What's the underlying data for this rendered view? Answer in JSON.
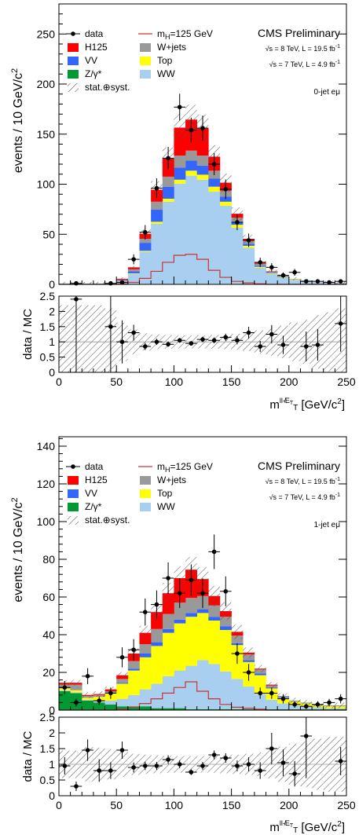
{
  "colors": {
    "data": "#000000",
    "H125": "#ff0000",
    "VV": "#3366ff",
    "Zgamma": "#009933",
    "Wjets": "#999999",
    "Top": "#ffff00",
    "WW": "#a8cef0",
    "mH": "#cc3333"
  },
  "panels": [
    {
      "id": "0jet",
      "ylabel": "events / 10 GeV/c",
      "ylabel_sup": "2",
      "ylim": [
        0,
        280
      ],
      "yticks": [
        0,
        50,
        100,
        150,
        200,
        250
      ],
      "ratio_ylabel": "data / MC",
      "ratio_ylim": [
        0,
        2.5
      ],
      "ratio_yticks": [
        "0",
        "0.5",
        "1",
        "1.5",
        "2",
        "2.5"
      ],
      "xlim": [
        0,
        250
      ],
      "xticks": [
        0,
        50,
        100,
        150,
        200,
        250
      ],
      "xlabel": "m",
      "xlabel_sub": "T",
      "xlabel_sup": "ll-̸E",
      "xlabel_sup_sub": "T",
      "xlabel_unit": "[GeV/c",
      "xlabel_unit_sup": "2",
      "xlabel_unit_end": "]",
      "cms": "CMS Preliminary",
      "lumi8": "√s = 8 TeV, L = 19.5 fb",
      "lumi7": "√s = 7 TeV, L = 4.9 fb",
      "lumi_sup": "-1",
      "category": "0-jet eμ",
      "legend": {
        "data": "data",
        "mh_pre": "m",
        "mh_sub": "H",
        "mh_post": "=125 GeV",
        "H125": "H125",
        "Wjets": "W+jets",
        "VV": "VV",
        "Top": "Top",
        "Z": "Z/γ*",
        "WW": "WW",
        "syst": "stat.⊕syst."
      },
      "chart_data": {
        "type": "bar",
        "stacked": true,
        "x_bin_centers": [
          5,
          15,
          25,
          35,
          45,
          55,
          65,
          75,
          85,
          95,
          105,
          115,
          125,
          135,
          145,
          155,
          165,
          175,
          185,
          195,
          205,
          215,
          225,
          235,
          245
        ],
        "series": [
          {
            "name": "Z/γ*",
            "values": [
              0.5,
              0.5,
              0.5,
              0.5,
              0.5,
              0.5,
              0.5,
              0.5,
              0.5,
              0.5,
              0.5,
              0.5,
              0.5,
              0.5,
              0.5,
              0.5,
              0.5,
              0.5,
              0.5,
              0.5,
              0.5,
              0.5,
              0.5,
              0.5,
              0.5
            ]
          },
          {
            "name": "WW",
            "values": [
              0.5,
              0.5,
              0.5,
              0.5,
              1,
              3,
              10,
              32,
              60,
              82,
              100,
              108,
              104,
              92,
              78,
              56,
              36,
              16,
              10,
              6,
              4,
              3,
              2,
              1.5,
              1
            ]
          },
          {
            "name": "Top",
            "values": [
              0,
              0,
              0,
              0,
              0,
              0,
              0.5,
              1,
              2,
              3,
              4,
              5,
              5,
              5,
              4,
              3,
              2,
              1,
              0.5,
              0.5,
              0.5,
              0,
              0,
              0,
              0
            ]
          },
          {
            "name": "VV",
            "values": [
              0,
              0,
              0,
              0,
              0,
              0.5,
              2,
              8,
              12,
              12,
              12,
              10,
              9,
              8,
              5,
              3,
              2,
              1,
              0.5,
              0.5,
              0,
              0,
              0,
              0,
              0
            ]
          },
          {
            "name": "W+jets",
            "values": [
              0,
              0,
              0,
              0,
              0,
              0.5,
              2,
              4,
              8,
              10,
              12,
              10,
              10,
              8,
              6,
              4,
              3,
              2,
              1,
              1,
              0.5,
              0.5,
              0,
              0,
              0
            ]
          },
          {
            "name": "H125",
            "values": [
              0,
              0,
              0,
              0,
              0,
              1,
              2,
              5,
              12,
              18,
              28,
              31,
              27,
              14,
              8,
              4,
              2,
              1,
              0.5,
              0,
              0,
              0,
              0,
              0,
              0
            ]
          }
        ],
        "higgs_line": [
          0,
          0,
          0,
          0,
          0,
          0.5,
          2,
          6,
          13,
          22,
          29,
          30,
          25,
          14,
          7,
          3,
          1.5,
          0.5,
          0,
          0,
          0,
          0,
          0,
          0,
          0
        ],
        "data": [
          0,
          1,
          0,
          0,
          1,
          2,
          25,
          52,
          96,
          126,
          177,
          154,
          156,
          120,
          95,
          62,
          44,
          22,
          17,
          9,
          12,
          3,
          3,
          2,
          3
        ],
        "ratio": [
          null,
          2.4,
          null,
          null,
          1.5,
          1.0,
          1.3,
          0.85,
          1.0,
          0.92,
          1.05,
          0.95,
          1.08,
          1.05,
          1.15,
          1.05,
          1.3,
          0.85,
          1.25,
          0.9,
          null,
          0.85,
          0.9,
          null,
          1.6
        ]
      }
    },
    {
      "id": "1jet",
      "ylabel": "events / 10 GeV/c",
      "ylabel_sup": "2",
      "ylim": [
        0,
        145
      ],
      "yticks": [
        0,
        20,
        40,
        60,
        80,
        100,
        120,
        140
      ],
      "ratio_ylabel": "data / MC",
      "ratio_ylim": [
        0,
        2.5
      ],
      "ratio_yticks": [
        "0",
        "0.5",
        "1",
        "1.5",
        "2",
        "2.5"
      ],
      "xlim": [
        0,
        250
      ],
      "xticks": [
        0,
        50,
        100,
        150,
        200,
        250
      ],
      "xlabel": "m",
      "xlabel_sub": "T",
      "xlabel_sup": "ll-̸E",
      "xlabel_sup_sub": "T",
      "xlabel_unit": "[GeV/c",
      "xlabel_unit_sup": "2",
      "xlabel_unit_end": "]",
      "cms": "CMS Preliminary",
      "lumi8": "√s = 8 TeV, L = 19.5 fb",
      "lumi7": "√s = 7 TeV, L = 4.9 fb",
      "lumi_sup": "-1",
      "category": "1-jet eμ",
      "legend": {
        "data": "data",
        "mh_pre": "m",
        "mh_sub": "H",
        "mh_post": "=125 GeV",
        "H125": "H125",
        "Wjets": "W+jets",
        "VV": "VV",
        "Top": "Top",
        "Z": "Z/γ*",
        "WW": "WW",
        "syst": "stat.⊕syst."
      },
      "chart_data": {
        "type": "bar",
        "stacked": true,
        "x_bin_centers": [
          5,
          15,
          25,
          35,
          45,
          55,
          65,
          75,
          85,
          95,
          105,
          115,
          125,
          135,
          145,
          155,
          165,
          175,
          185,
          195,
          205,
          215,
          225,
          235,
          245
        ],
        "series": [
          {
            "name": "Z/γ*",
            "values": [
              10,
              9,
              5,
              4,
              3,
              2,
              2,
              2,
              1,
              1,
              1,
              0.5,
              0.5,
              0.5,
              0.5,
              0.5,
              0.5,
              0.5,
              0.5,
              0.5,
              0.5,
              0.5,
              0.5,
              0.5,
              0.5
            ]
          },
          {
            "name": "WW",
            "values": [
              0.5,
              0.5,
              0.5,
              1,
              2,
              4,
              6,
              9,
              13,
              17,
              20,
              23,
              26,
              24,
              20,
              16,
              12,
              8,
              5,
              3,
              2,
              1.5,
              1,
              0.5,
              0.5
            ]
          },
          {
            "name": "Top",
            "values": [
              1,
              1,
              1,
              2,
              4,
              8,
              13,
              17,
              20,
              23,
              25,
              26,
              25,
              23,
              22,
              18,
              13,
              10,
              6,
              3,
              2,
              1.5,
              1,
              1,
              1
            ]
          },
          {
            "name": "VV",
            "values": [
              0,
              0,
              0,
              0,
              0,
              0.5,
              1,
              2,
              2,
              2,
              2,
              2,
              2,
              2,
              2,
              1,
              1,
              1,
              0.5,
              0.5,
              0,
              0,
              0,
              0,
              0
            ]
          },
          {
            "name": "W+jets",
            "values": [
              2,
              3,
              1,
              1,
              1,
              2,
              4,
              5,
              7,
              8,
              9,
              8,
              7,
              6,
              5,
              4,
              3,
              2,
              1,
              0.5,
              0.5,
              0.5,
              0.5,
              0.5,
              0.5
            ]
          },
          {
            "name": "H125",
            "values": [
              1,
              1,
              0.5,
              0.5,
              1,
              2,
              4,
              6,
              9,
              11,
              13,
              15,
              9,
              5,
              3,
              2,
              1,
              0.5,
              0.5,
              0,
              0,
              0,
              0,
              0,
              0
            ]
          }
        ],
        "higgs_line": [
          0,
          0,
          0,
          0,
          0,
          0.5,
          1.5,
          3.5,
          6,
          9,
          12,
          15,
          10,
          6,
          3,
          1.5,
          1,
          0.5,
          0,
          0,
          0,
          0,
          0,
          0,
          0
        ],
        "data": [
          12,
          4,
          18,
          5,
          9,
          28,
          32,
          52,
          56,
          70,
          62,
          69,
          62,
          84,
          63,
          30,
          20,
          9,
          9,
          6,
          3,
          2,
          3,
          4,
          6
        ],
        "ratio": [
          0.95,
          0.3,
          1.45,
          0.8,
          0.8,
          1.45,
          0.9,
          0.95,
          0.95,
          1.15,
          1.0,
          0.75,
          0.95,
          1.3,
          1.2,
          0.95,
          1.0,
          0.8,
          1.5,
          1.05,
          0.7,
          1.9,
          null,
          null,
          1.1
        ]
      }
    }
  ]
}
